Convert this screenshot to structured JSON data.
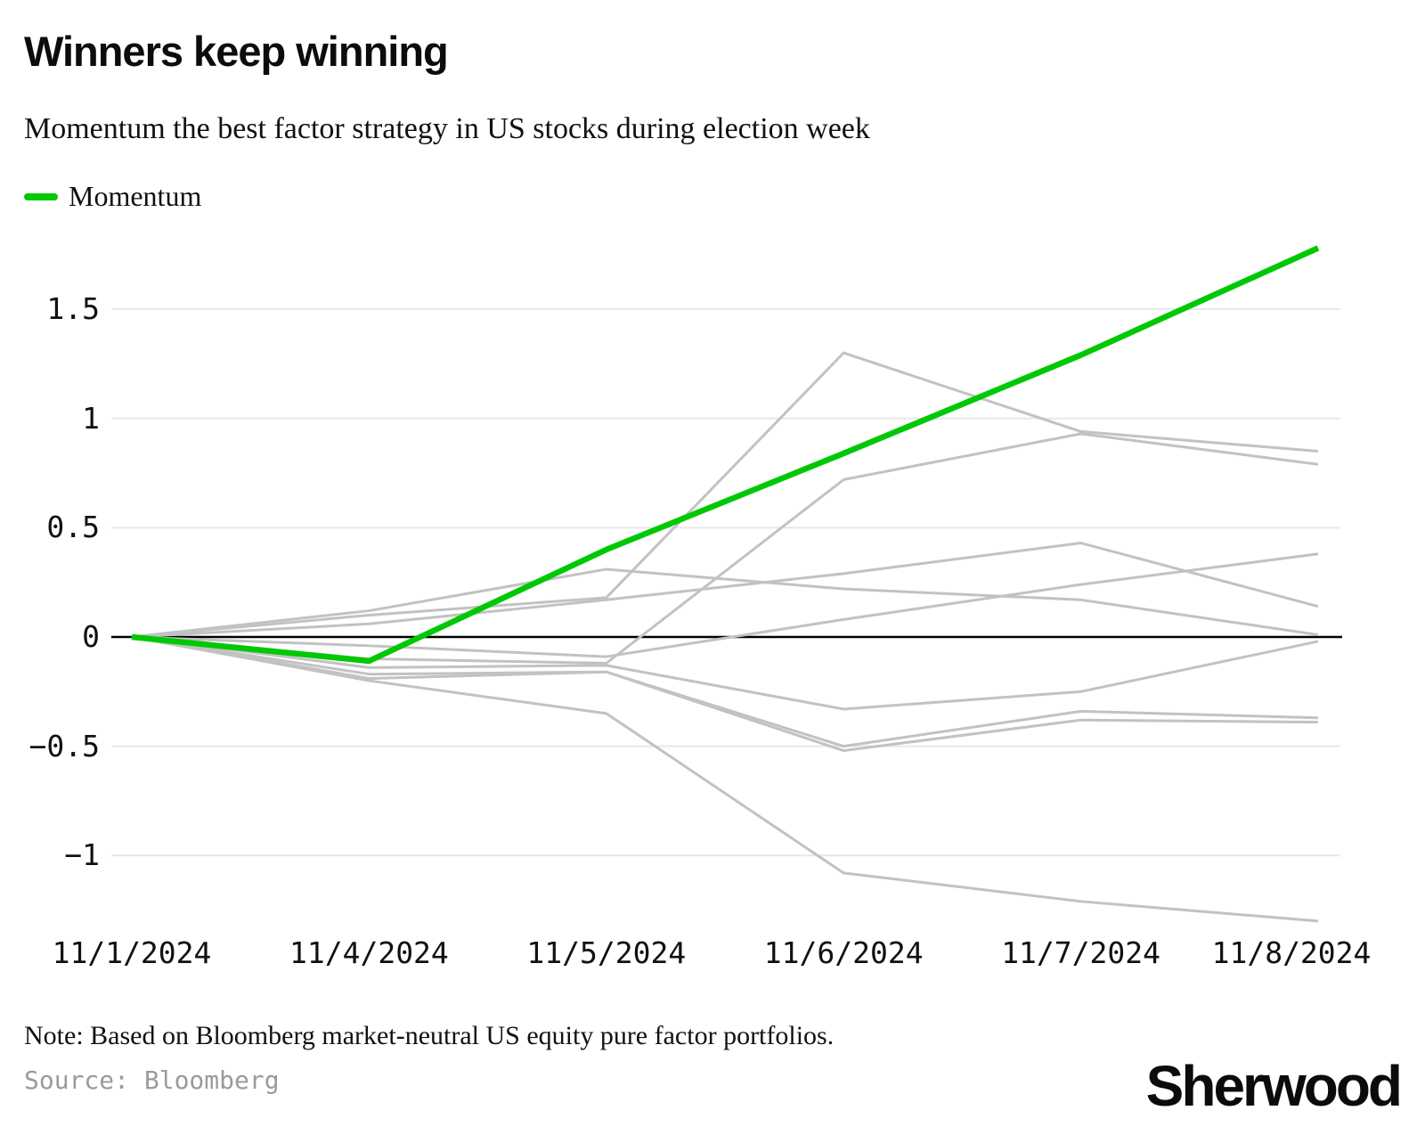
{
  "header": {
    "title": "Winners keep winning",
    "subtitle": "Momentum the best factor strategy in US stocks during election week"
  },
  "legend": {
    "label": "Momentum"
  },
  "chart_data": {
    "type": "line",
    "categories": [
      "11/1/2024",
      "11/4/2024",
      "11/5/2024",
      "11/6/2024",
      "11/7/2024",
      "11/8/2024"
    ],
    "series": [
      {
        "label": "Momentum",
        "emphasis": true,
        "values": [
          0,
          -0.11,
          0.4,
          0.84,
          1.29,
          1.78
        ]
      },
      {
        "label": "",
        "emphasis": false,
        "values": [
          0,
          0.1,
          0.18,
          1.3,
          0.94,
          0.85
        ]
      },
      {
        "label": "",
        "emphasis": false,
        "values": [
          0,
          -0.1,
          -0.12,
          0.72,
          0.93,
          0.79
        ]
      },
      {
        "label": "",
        "emphasis": false,
        "values": [
          0,
          0.06,
          0.17,
          0.29,
          0.43,
          0.14
        ]
      },
      {
        "label": "",
        "emphasis": false,
        "values": [
          0,
          0.12,
          0.31,
          0.22,
          0.17,
          0.01
        ]
      },
      {
        "label": "",
        "emphasis": false,
        "values": [
          0,
          -0.04,
          -0.09,
          0.08,
          0.24,
          0.38
        ]
      },
      {
        "label": "",
        "emphasis": false,
        "values": [
          0,
          -0.14,
          -0.13,
          -0.33,
          -0.25,
          -0.02
        ]
      },
      {
        "label": "",
        "emphasis": false,
        "values": [
          0,
          -0.17,
          -0.16,
          -0.5,
          -0.34,
          -0.37
        ]
      },
      {
        "label": "",
        "emphasis": false,
        "values": [
          0,
          -0.19,
          -0.16,
          -0.52,
          -0.38,
          -0.39
        ]
      },
      {
        "label": "",
        "emphasis": false,
        "values": [
          0,
          -0.2,
          -0.35,
          -1.08,
          -1.21,
          -1.3
        ]
      }
    ],
    "yticks": [
      {
        "value": 1.5,
        "label": "1.5"
      },
      {
        "value": 1,
        "label": "1"
      },
      {
        "value": 0.5,
        "label": "0.5"
      },
      {
        "value": 0,
        "label": "0"
      },
      {
        "value": -0.5,
        "label": "−0.5"
      },
      {
        "value": -1,
        "label": "−1"
      }
    ],
    "ylim": [
      -1.35,
      1.85
    ],
    "grid": true,
    "legend_position": "top-left",
    "xlabel": "",
    "ylabel": ""
  },
  "footer": {
    "note": "Note: Based on Bloomberg market-neutral US equity pure factor portfolios.",
    "source": "Source: Bloomberg",
    "logo": "Sherwood"
  },
  "colors": {
    "accent": "#00c805",
    "gray_line": "#c2c2c2",
    "grid": "#e8e8e8",
    "zero_line": "#000000",
    "text": "#111111",
    "source_text": "#9a9a9a"
  }
}
